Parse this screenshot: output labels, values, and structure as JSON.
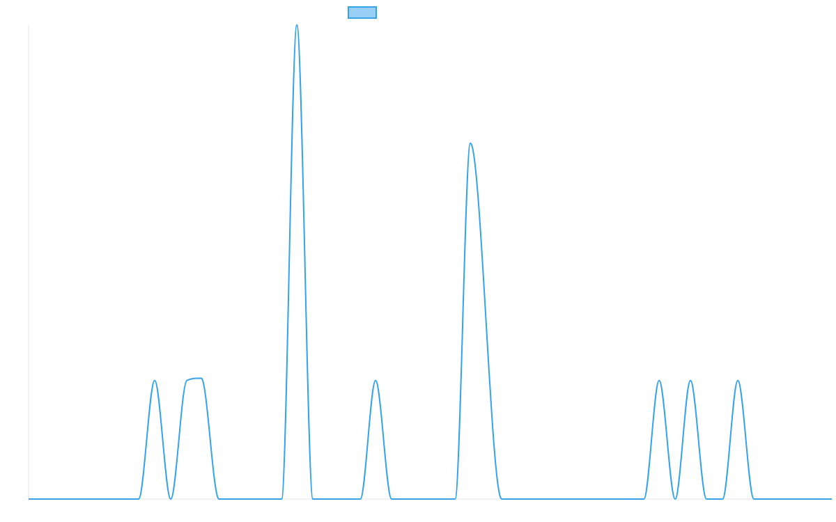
{
  "colors": {
    "series": "#36a2eb",
    "series_fill": "#9ad0f5",
    "axis": "#e5e5e5",
    "background": "#ffffff"
  },
  "chart_data": {
    "type": "line",
    "title": "",
    "xlabel": "",
    "ylabel": "",
    "grid": false,
    "legend": {
      "position": "top",
      "entries": [
        {
          "name": "",
          "color": "#36a2eb",
          "fill": "#9ad0f5"
        }
      ]
    },
    "xlim": [
      0,
      1000
    ],
    "ylim": [
      0,
      1
    ],
    "series": [
      {
        "name": "",
        "color": "#36a2eb",
        "interpolation": "monotone",
        "points": [
          [
            0,
            0
          ],
          [
            137,
            0
          ],
          [
            157,
            0.25
          ],
          [
            177,
            0
          ],
          [
            197,
            0.25
          ],
          [
            215,
            0.255
          ],
          [
            237,
            0
          ],
          [
            315,
            0
          ],
          [
            334,
            1.0
          ],
          [
            354,
            0
          ],
          [
            413,
            0
          ],
          [
            432,
            0.25
          ],
          [
            452,
            0
          ],
          [
            531,
            0
          ],
          [
            550,
            0.751
          ],
          [
            589,
            0
          ],
          [
            766,
            0
          ],
          [
            785,
            0.25
          ],
          [
            805,
            0
          ],
          [
            824,
            0.25
          ],
          [
            844,
            0
          ],
          [
            864,
            0
          ],
          [
            883,
            0.25
          ],
          [
            903,
            0
          ],
          [
            1000,
            0
          ]
        ]
      }
    ]
  }
}
